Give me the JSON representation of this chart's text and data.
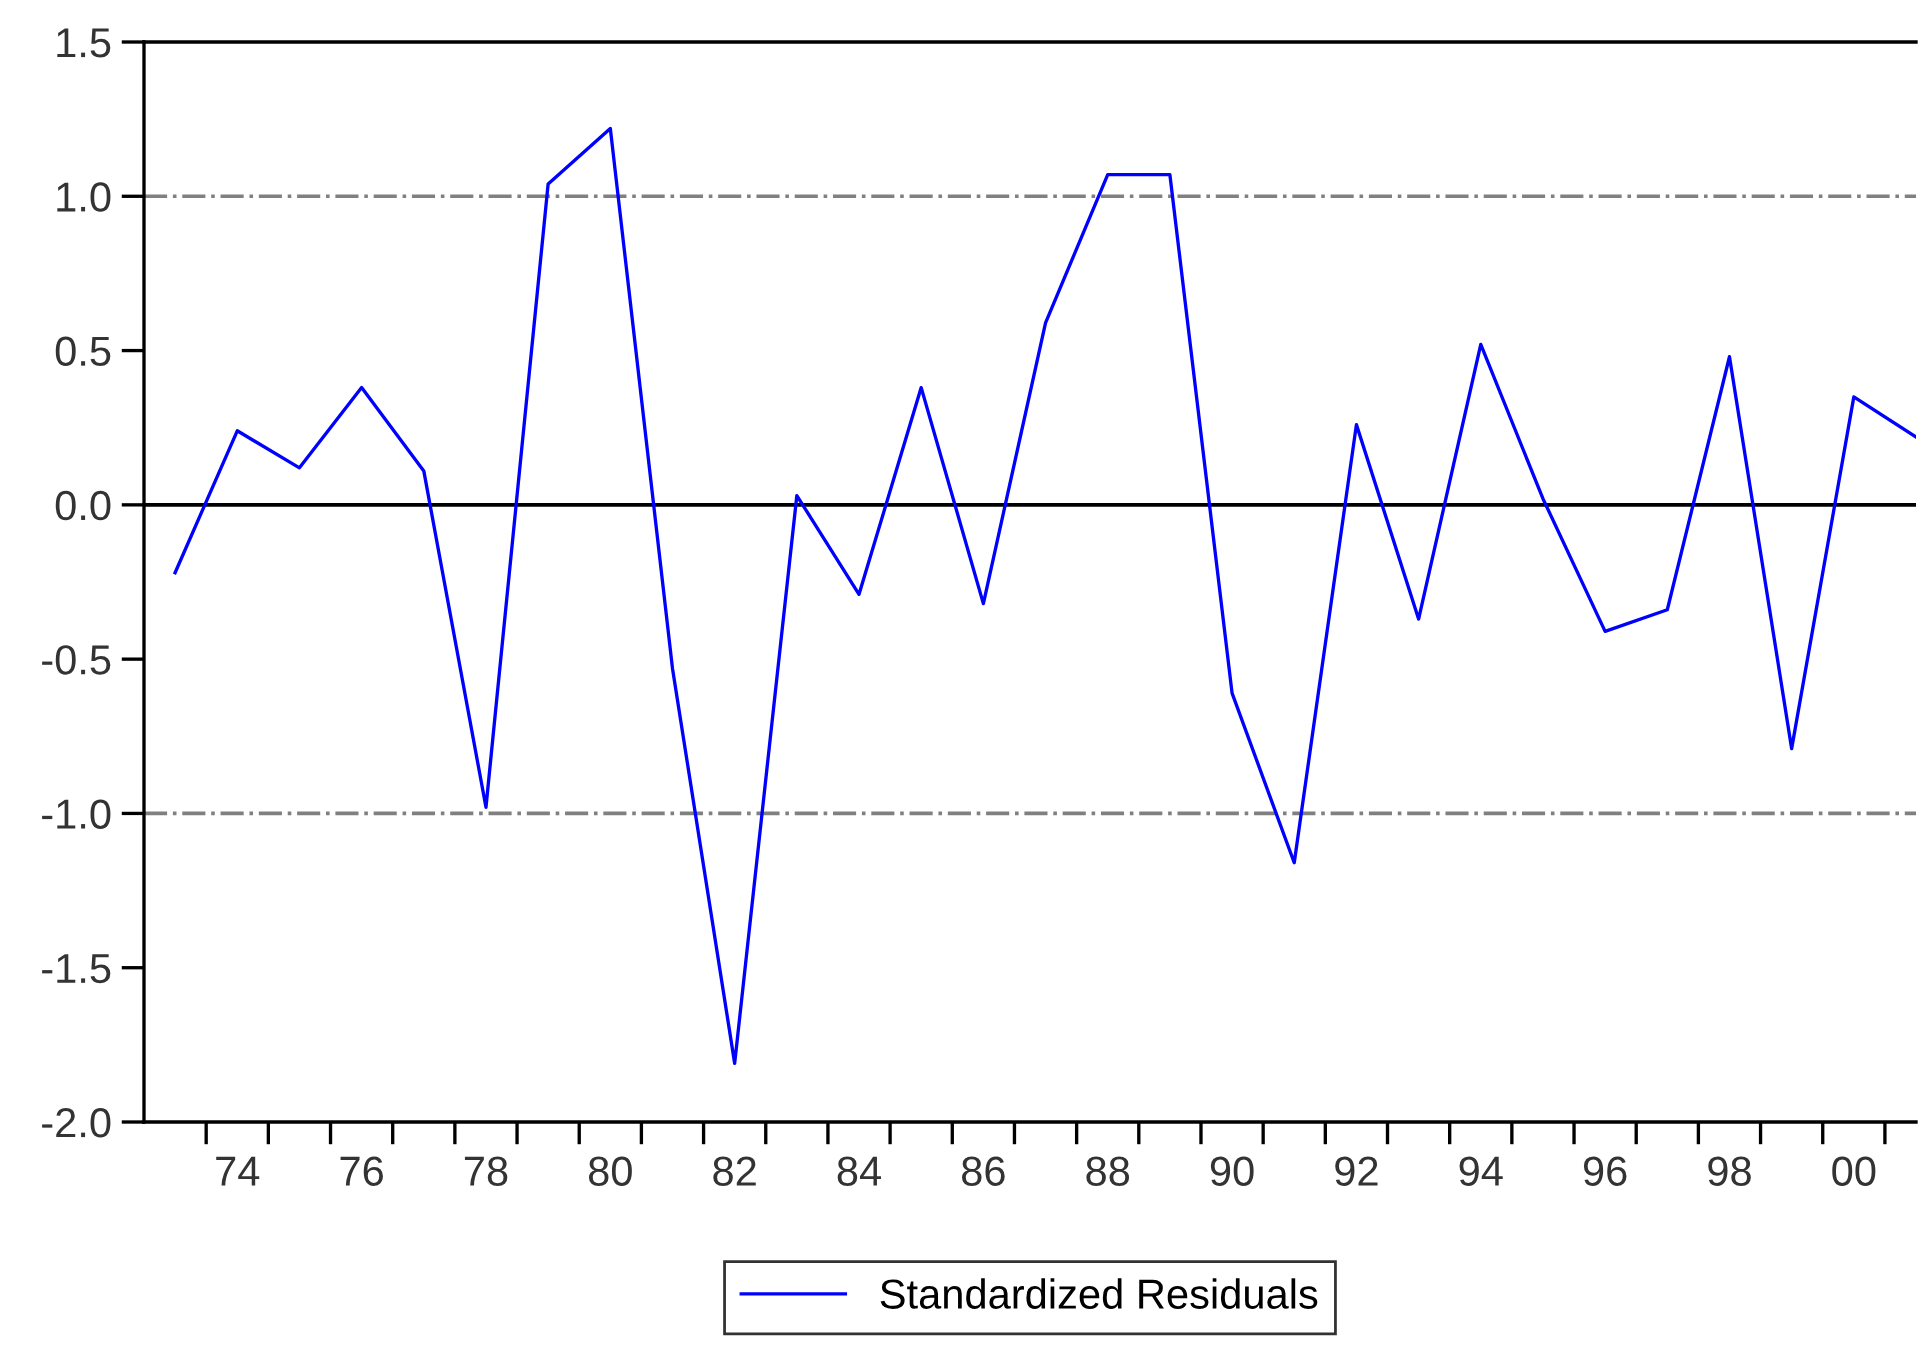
{
  "chart_data": {
    "type": "line",
    "x": [
      1973,
      1974,
      1975,
      1976,
      1977,
      1978,
      1979,
      1980,
      1981,
      1982,
      1983,
      1984,
      1985,
      1986,
      1987,
      1988,
      1989,
      1990,
      1991,
      1992,
      1993,
      1994,
      1995,
      1996,
      1997,
      1998,
      1999,
      2000,
      2001
    ],
    "series": [
      {
        "name": "Standardized Residuals",
        "color": "#0000ff",
        "values": [
          -0.22,
          0.24,
          0.12,
          0.38,
          0.11,
          -0.98,
          1.04,
          1.22,
          -0.53,
          -1.81,
          0.03,
          -0.29,
          0.38,
          -0.32,
          0.59,
          1.07,
          1.07,
          -0.61,
          -1.16,
          0.26,
          -0.37,
          0.52,
          0.02,
          -0.41,
          -0.34,
          0.48,
          -0.79,
          0.35,
          0.22
        ]
      }
    ],
    "xlim": [
      1972.5,
      2001
    ],
    "xticks": [
      {
        "value": 1973.5,
        "label": null
      },
      {
        "value": 1974,
        "label": "74"
      },
      {
        "value": 1974.5,
        "label": null
      },
      {
        "value": 1975.5,
        "label": null
      },
      {
        "value": 1976,
        "label": "76"
      },
      {
        "value": 1976.5,
        "label": null
      },
      {
        "value": 1977.5,
        "label": null
      },
      {
        "value": 1978,
        "label": "78"
      },
      {
        "value": 1978.5,
        "label": null
      },
      {
        "value": 1979.5,
        "label": null
      },
      {
        "value": 1980,
        "label": "80"
      },
      {
        "value": 1980.5,
        "label": null
      },
      {
        "value": 1981.5,
        "label": null
      },
      {
        "value": 1982,
        "label": "82"
      },
      {
        "value": 1982.5,
        "label": null
      },
      {
        "value": 1983.5,
        "label": null
      },
      {
        "value": 1984,
        "label": "84"
      },
      {
        "value": 1984.5,
        "label": null
      },
      {
        "value": 1985.5,
        "label": null
      },
      {
        "value": 1986,
        "label": "86"
      },
      {
        "value": 1986.5,
        "label": null
      },
      {
        "value": 1987.5,
        "label": null
      },
      {
        "value": 1988,
        "label": "88"
      },
      {
        "value": 1988.5,
        "label": null
      },
      {
        "value": 1989.5,
        "label": null
      },
      {
        "value": 1990,
        "label": "90"
      },
      {
        "value": 1990.5,
        "label": null
      },
      {
        "value": 1991.5,
        "label": null
      },
      {
        "value": 1992,
        "label": "92"
      },
      {
        "value": 1992.5,
        "label": null
      },
      {
        "value": 1993.5,
        "label": null
      },
      {
        "value": 1994,
        "label": "94"
      },
      {
        "value": 1994.5,
        "label": null
      },
      {
        "value": 1995.5,
        "label": null
      },
      {
        "value": 1996,
        "label": "96"
      },
      {
        "value": 1996.5,
        "label": null
      },
      {
        "value": 1997.5,
        "label": null
      },
      {
        "value": 1998,
        "label": "98"
      },
      {
        "value": 1998.5,
        "label": null
      },
      {
        "value": 1999.5,
        "label": null
      },
      {
        "value": 2000,
        "label": "00"
      },
      {
        "value": 2000.5,
        "label": null
      }
    ],
    "ylim": [
      -2.0,
      1.5
    ],
    "yticks": [
      {
        "value": -2.0,
        "label": "-2.0"
      },
      {
        "value": -1.5,
        "label": "-1.5"
      },
      {
        "value": -1.0,
        "label": "-1.0"
      },
      {
        "value": -0.5,
        "label": "-0.5"
      },
      {
        "value": 0.0,
        "label": "0.0"
      },
      {
        "value": 0.5,
        "label": "0.5"
      },
      {
        "value": 1.0,
        "label": "1.0"
      },
      {
        "value": 1.5,
        "label": "1.5"
      }
    ],
    "ref_lines": [
      {
        "axis": "y",
        "value": 1.0,
        "color": "#808080",
        "line_style": "dashdot"
      },
      {
        "axis": "y",
        "value": 0.0,
        "color": "#000000",
        "line_style": "solid"
      },
      {
        "axis": "y",
        "value": -1.0,
        "color": "#808080",
        "line_style": "dashdot"
      }
    ],
    "legend": "bottom",
    "grid": false,
    "marker": "none",
    "line_style": "solid"
  }
}
